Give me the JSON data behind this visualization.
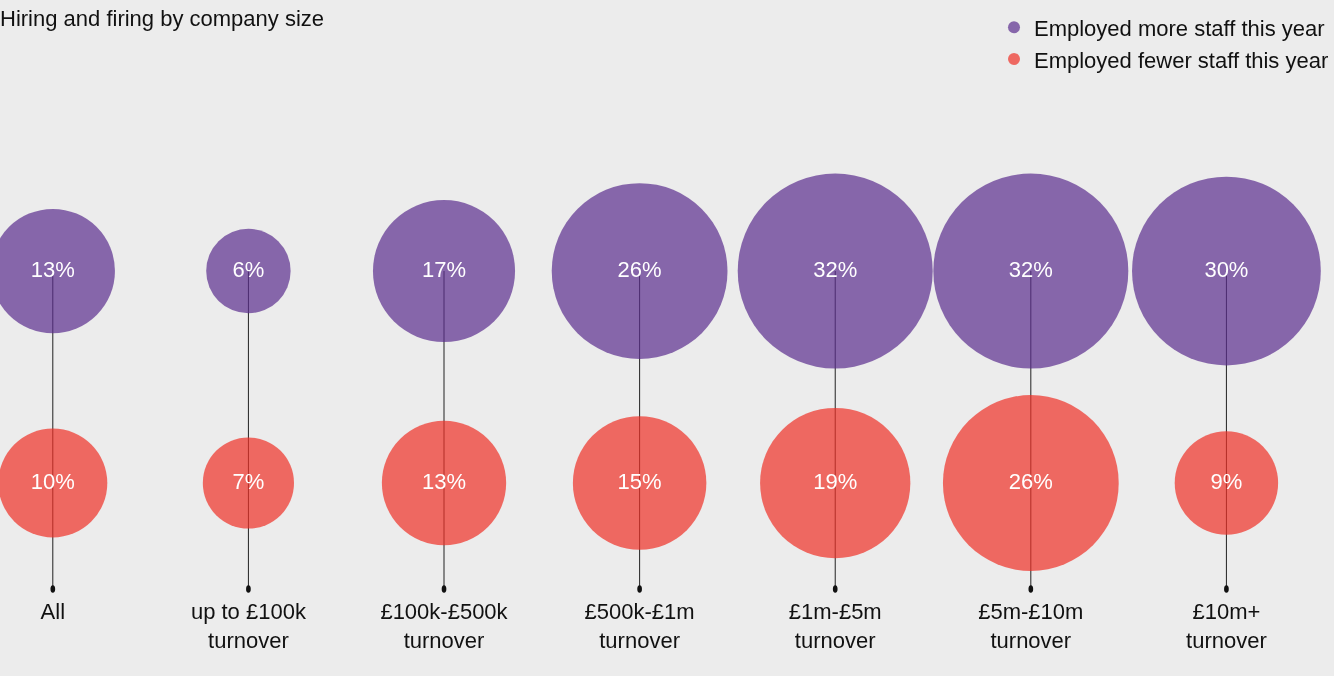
{
  "chart_data": {
    "type": "other",
    "title": "Hiring and firing by company size",
    "categories": [
      "All",
      "up to £100k\nturnover",
      "£100k-£500k\nturnover",
      "£500k-£1m\nturnover",
      "£1m-£5m\nturnover",
      "£5m-£10m\nturnover",
      "£10m+\nturnover"
    ],
    "legend": "top right",
    "series": [
      {
        "name": "Employed more staff this year",
        "color": "#5b2d8e",
        "values": [
          13,
          6,
          17,
          26,
          32,
          32,
          30
        ],
        "value_labels": [
          "13%",
          "6%",
          "17%",
          "26%",
          "32%",
          "32%",
          "30%"
        ]
      },
      {
        "name": "Employed fewer staff this year",
        "color": "#ef3027",
        "values": [
          10,
          7,
          13,
          15,
          19,
          26,
          9
        ],
        "value_labels": [
          "10%",
          "7%",
          "13%",
          "15%",
          "19%",
          "26%",
          "9%"
        ]
      }
    ]
  }
}
